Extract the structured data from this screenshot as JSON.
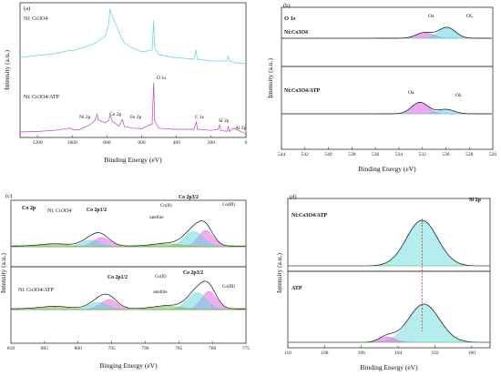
{
  "chart_data": [
    {
      "panel_label": "(a)",
      "type": "line",
      "xlabel": "Binding Energy (eV)",
      "ylabel": "Intensity (a.u.)",
      "xlim": [
        1300,
        0
      ],
      "x_ticks": [
        1200,
        1000,
        800,
        600,
        400,
        200,
        0
      ],
      "reversed_x": true,
      "series": [
        {
          "name": "Ni: Co3O4",
          "color": "#5cd6dc",
          "x": [
            1300,
            1200,
            1100,
            1010,
            1000,
            900,
            860,
            850,
            810,
            790,
            782,
            770,
            730,
            720,
            700,
            650,
            600,
            540,
            531,
            525,
            500,
            420,
            300,
            288,
            280,
            200,
            110,
            101,
            95,
            60,
            0
          ],
          "y": [
            0.82,
            0.84,
            0.86,
            0.9,
            0.89,
            0.95,
            0.98,
            1.0,
            1.05,
            1.18,
            1.35,
            1.28,
            1.1,
            1.05,
            0.98,
            0.92,
            0.88,
            0.9,
            1.22,
            0.92,
            0.85,
            0.82,
            0.8,
            0.9,
            0.8,
            0.78,
            0.78,
            0.83,
            0.78,
            0.76,
            0.75
          ]
        },
        {
          "name": "Ni: Co3O4/ATP",
          "color": "#c040c8",
          "x": [
            1300,
            1200,
            1100,
            1010,
            1000,
            960,
            900,
            870,
            856,
            850,
            810,
            790,
            780,
            770,
            730,
            711,
            700,
            650,
            600,
            540,
            531,
            525,
            500,
            420,
            300,
            285,
            280,
            200,
            160,
            152,
            145,
            110,
            101,
            95,
            75,
            0
          ],
          "y": [
            0.05,
            0.06,
            0.08,
            0.12,
            0.1,
            0.09,
            0.18,
            0.26,
            0.38,
            0.27,
            0.22,
            0.26,
            0.36,
            0.25,
            0.16,
            0.28,
            0.15,
            0.12,
            0.11,
            0.2,
            0.95,
            0.25,
            0.12,
            0.1,
            0.1,
            0.24,
            0.1,
            0.08,
            0.1,
            0.18,
            0.08,
            0.06,
            0.15,
            0.06,
            0.12,
            0.02
          ]
        }
      ],
      "legend": [
        "Ni: Co3O4",
        "Ni: Co3O4/ATP"
      ],
      "annotations": [
        "O 1s",
        "Ni 2p",
        "Co 2p",
        "Fe 2p",
        "C 1s",
        "Si 2p",
        "Al 2p"
      ]
    },
    {
      "panel_label": "(b)",
      "type": "line",
      "title": "O 1s",
      "xlabel": "Binding Energy (eV)",
      "ylabel": "Intensity (a.u.)",
      "xlim": [
        544,
        526
      ],
      "x_ticks": [
        544,
        542,
        540,
        538,
        536,
        534,
        532,
        530,
        528,
        526
      ],
      "reversed_x": true,
      "subpanels": [
        {
          "label": "Ni:Co3O4",
          "components": [
            {
              "name": "Oa",
              "center": 531.8,
              "height": 0.45,
              "color": "#e060e0"
            },
            {
              "name": "OL",
              "center": 529.9,
              "height": 0.85,
              "color": "#5cd6dc"
            }
          ]
        },
        {
          "label": "Ni:Co3O4/ATP",
          "components": [
            {
              "name": "Oa",
              "center": 532.2,
              "height": 0.9,
              "color": "#e060e0"
            },
            {
              "name": "OL",
              "center": 530.0,
              "height": 0.35,
              "color": "#5cd6dc"
            }
          ]
        }
      ]
    },
    {
      "panel_label": "(c)",
      "type": "line",
      "title": "Co 2p",
      "xlabel": "Binging Energy (eV)",
      "ylabel": "Intensity (a.u.)",
      "xlim": [
        810,
        775
      ],
      "x_ticks": [
        810,
        805,
        800,
        795,
        790,
        785,
        780,
        775
      ],
      "reversed_x": true,
      "subpanels": [
        {
          "label": "Ni: Co3O4",
          "peaks": [
            "Co 2p1/2",
            "Co 2p3/2",
            "Co(II)",
            "Co(III)",
            "satellite"
          ],
          "main_peaks": [
            796.5,
            781.0
          ]
        },
        {
          "label": "Ni: Co3O4/ATP",
          "peaks": [
            "Co 2p1/2",
            "Co 2p3/2",
            "Co(II)",
            "Co(III)",
            "satellite"
          ],
          "main_peaks": [
            795.4,
            780.5
          ]
        }
      ]
    },
    {
      "panel_label": "(d)",
      "type": "line",
      "title": "Si 2p",
      "xlabel": "Binding Energy (eV)",
      "ylabel": "Intensity (a.u.)",
      "xlim": [
        110,
        99
      ],
      "x_ticks": [
        110,
        108,
        106,
        104,
        102,
        100
      ],
      "reversed_x": true,
      "subpanels": [
        {
          "label": "Ni:Co3O4/ATP",
          "peak_center": 102.7
        },
        {
          "label": "ATP",
          "peak_center": 102.6
        }
      ]
    }
  ],
  "labels": {
    "a": {
      "letter": "(a)",
      "legend1": "Ni: Co3O4",
      "legend2": "Ni: Co3O4/ATP",
      "o1s": "O 1s",
      "ni2p": "Ni 2p",
      "co2p": "Co 2p",
      "fe2p": "Fe 2p",
      "c1s": "C 1s",
      "si2p": "Si 2p",
      "al2p": "Al 2p",
      "xlabel": "Binding Energy (eV)",
      "ylabel": "Intensity (a.u.)"
    },
    "b": {
      "letter": "(b)",
      "title": "O 1s",
      "top": "Ni:Co3O4",
      "bottom": "Ni:Co3O4/ATP",
      "oa": "Oa",
      "ol": "OL",
      "xlabel": "Binding Energy (eV)",
      "ylabel": "Intensity (a.u.)"
    },
    "c": {
      "letter": "(c)",
      "title": "Co 2p",
      "top": "Ni: Co3O4",
      "bottom": "Ni: Co3O4/ATP",
      "p12": "Co 2p1/2",
      "p32": "Co 2p3/2",
      "co2": "Co(II)",
      "co3": "Co(III)",
      "sat": "satellite",
      "xlabel": "Binging Energy (eV)",
      "ylabel": "Intensity (a.u.)"
    },
    "d": {
      "letter": "(d)",
      "title": "Si 2p",
      "top": "Ni:Co3O4/ATP",
      "bottom": "ATP",
      "xlabel": "Binding Energy (eV)",
      "ylabel": "Intensity (a.u.)"
    }
  },
  "colors": {
    "cyan": "#5cd6dc",
    "magenta": "#c040c8",
    "pink": "#e060e0",
    "green": "#7ab84a",
    "black": "#111111",
    "red_dash": "#c0392b"
  }
}
